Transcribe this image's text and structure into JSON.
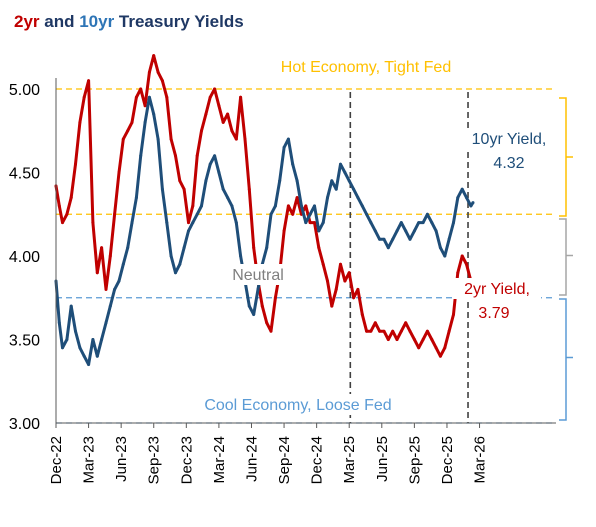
{
  "title": {
    "part1": "2yr",
    "part2": " and ",
    "part3": "10yr",
    "part4": " Treasury Yields"
  },
  "colors": {
    "two_year": "#c00000",
    "ten_year": "#1f4e79",
    "hot_band": "#ffc000",
    "cool_band": "#5b9bd5",
    "neutral_band": "#a6a6a6",
    "event_line": "#404040",
    "axis_text": "#000000"
  },
  "chart_data": {
    "type": "line",
    "title": "2yr and 10yr Treasury Yields",
    "xlabel": "",
    "ylabel": "",
    "ylim": [
      3.0,
      5.2
    ],
    "yticks": [
      "3.00",
      "3.50",
      "4.00",
      "4.50",
      "5.00"
    ],
    "ytick_values": [
      3.0,
      3.5,
      4.0,
      4.5,
      5.0
    ],
    "xticks": [
      "Dec-22",
      "Mar-23",
      "Jun-23",
      "Sep-23",
      "Dec-23",
      "Mar-24",
      "Jun-24",
      "Sep-24",
      "Dec-24",
      "Mar-25",
      "Jun-25",
      "Sep-25",
      "Dec-25",
      "Mar-26"
    ],
    "grid": false,
    "reference_lines": [
      {
        "value": 5.0,
        "style": "dashed",
        "color": "#ffc000"
      },
      {
        "value": 4.25,
        "style": "dashed",
        "color": "#ffc000"
      },
      {
        "value": 3.75,
        "style": "dashed",
        "color": "#5b9bd5"
      },
      {
        "value": 3.0,
        "style": "dashed",
        "color": "#5b9bd5"
      }
    ],
    "event_lines": [
      "Mar-25",
      "Feb-26"
    ],
    "annotations": {
      "hot": "Hot Economy, Tight Fed",
      "neutral": "Neutral",
      "cool": "Cool Economy, Loose Fed",
      "ten_label_1": "10yr Yield,",
      "ten_label_2": "4.32",
      "two_label_1": "2yr Yield,",
      "two_label_2": "3.79"
    },
    "series": [
      {
        "key": "two_year",
        "months": [
          0,
          0.3,
          0.6,
          1,
          1.4,
          1.8,
          2.2,
          2.6,
          3,
          3.4,
          3.8,
          4.2,
          4.6,
          5,
          5.4,
          5.8,
          6.2,
          6.6,
          7,
          7.4,
          7.8,
          8.2,
          8.6,
          9,
          9.4,
          9.8,
          10.2,
          10.6,
          11,
          11.4,
          11.8,
          12.2,
          12.6,
          13,
          13.4,
          13.8,
          14.2,
          14.6,
          15,
          15.4,
          15.8,
          16.2,
          16.6,
          17,
          17.4,
          17.8,
          18.2,
          18.6,
          19,
          19.4,
          19.8,
          20.2,
          20.6,
          21,
          21.4,
          21.8,
          22.2,
          22.6,
          23,
          23.4,
          23.8,
          24.2,
          24.6,
          25,
          25.4,
          25.8,
          26.2,
          26.6,
          27,
          27.4,
          27.8,
          28.2,
          28.6,
          29,
          29.4,
          29.8,
          30.2,
          30.6,
          31,
          31.4,
          31.8,
          32.2,
          32.6,
          33,
          33.4,
          33.8,
          34.2,
          34.6,
          35,
          35.4,
          35.8,
          36.2,
          36.6,
          37,
          37.4,
          37.8,
          38.2,
          38.4
        ],
        "values": [
          4.42,
          4.3,
          4.2,
          4.25,
          4.35,
          4.55,
          4.8,
          4.95,
          5.05,
          4.2,
          3.9,
          4.05,
          3.8,
          4.0,
          4.25,
          4.5,
          4.7,
          4.75,
          4.8,
          4.95,
          5.0,
          4.9,
          5.1,
          5.2,
          5.1,
          5.05,
          4.95,
          4.7,
          4.6,
          4.45,
          4.4,
          4.2,
          4.3,
          4.6,
          4.75,
          4.85,
          4.95,
          5.0,
          4.9,
          4.8,
          4.85,
          4.75,
          4.7,
          4.95,
          4.7,
          4.4,
          4.05,
          3.85,
          3.7,
          3.6,
          3.55,
          3.75,
          3.9,
          4.15,
          4.3,
          4.25,
          4.35,
          4.25,
          4.3,
          4.2,
          4.2,
          4.05,
          3.95,
          3.85,
          3.7,
          3.8,
          3.95,
          3.85,
          3.9,
          3.75,
          3.8,
          3.65,
          3.55,
          3.55,
          3.6,
          3.55,
          3.55,
          3.5,
          3.55,
          3.5,
          3.55,
          3.6,
          3.55,
          3.5,
          3.45,
          3.5,
          3.55,
          3.5,
          3.45,
          3.4,
          3.45,
          3.55,
          3.65,
          3.9,
          4.0,
          3.95,
          3.85,
          3.79
        ]
      },
      {
        "key": "ten_year",
        "months": [
          0,
          0.3,
          0.6,
          1,
          1.4,
          1.8,
          2.2,
          2.6,
          3,
          3.4,
          3.8,
          4.2,
          4.6,
          5,
          5.4,
          5.8,
          6.2,
          6.6,
          7,
          7.4,
          7.8,
          8.2,
          8.6,
          9,
          9.4,
          9.8,
          10.2,
          10.6,
          11,
          11.4,
          11.8,
          12.2,
          12.6,
          13,
          13.4,
          13.8,
          14.2,
          14.6,
          15,
          15.4,
          15.8,
          16.2,
          16.6,
          17,
          17.4,
          17.8,
          18.2,
          18.6,
          19,
          19.4,
          19.8,
          20.2,
          20.6,
          21,
          21.4,
          21.8,
          22.2,
          22.6,
          23,
          23.4,
          23.8,
          24.2,
          24.6,
          25,
          25.4,
          25.8,
          26.2,
          26.6,
          27,
          27.4,
          27.8,
          28.2,
          28.6,
          29,
          29.4,
          29.8,
          30.2,
          30.6,
          31,
          31.4,
          31.8,
          32.2,
          32.6,
          33,
          33.4,
          33.8,
          34.2,
          34.6,
          35,
          35.4,
          35.8,
          36.2,
          36.6,
          37,
          37.4,
          37.8,
          38.2,
          38.4
        ],
        "values": [
          3.85,
          3.6,
          3.45,
          3.5,
          3.7,
          3.55,
          3.45,
          3.4,
          3.35,
          3.5,
          3.4,
          3.5,
          3.6,
          3.7,
          3.8,
          3.85,
          3.95,
          4.05,
          4.2,
          4.35,
          4.6,
          4.8,
          4.95,
          4.85,
          4.7,
          4.4,
          4.2,
          4.0,
          3.9,
          3.95,
          4.05,
          4.15,
          4.2,
          4.25,
          4.3,
          4.45,
          4.55,
          4.6,
          4.5,
          4.4,
          4.35,
          4.3,
          4.2,
          4.0,
          3.85,
          3.7,
          3.65,
          3.8,
          3.95,
          4.05,
          4.25,
          4.3,
          4.45,
          4.65,
          4.7,
          4.55,
          4.45,
          4.3,
          4.2,
          4.25,
          4.3,
          4.15,
          4.2,
          4.35,
          4.45,
          4.4,
          4.55,
          4.5,
          4.45,
          4.4,
          4.35,
          4.3,
          4.25,
          4.2,
          4.15,
          4.1,
          4.1,
          4.05,
          4.1,
          4.15,
          4.2,
          4.15,
          4.1,
          4.15,
          4.2,
          4.2,
          4.25,
          4.2,
          4.15,
          4.05,
          4.0,
          4.1,
          4.2,
          4.35,
          4.4,
          4.35,
          4.3,
          4.32
        ]
      }
    ]
  }
}
